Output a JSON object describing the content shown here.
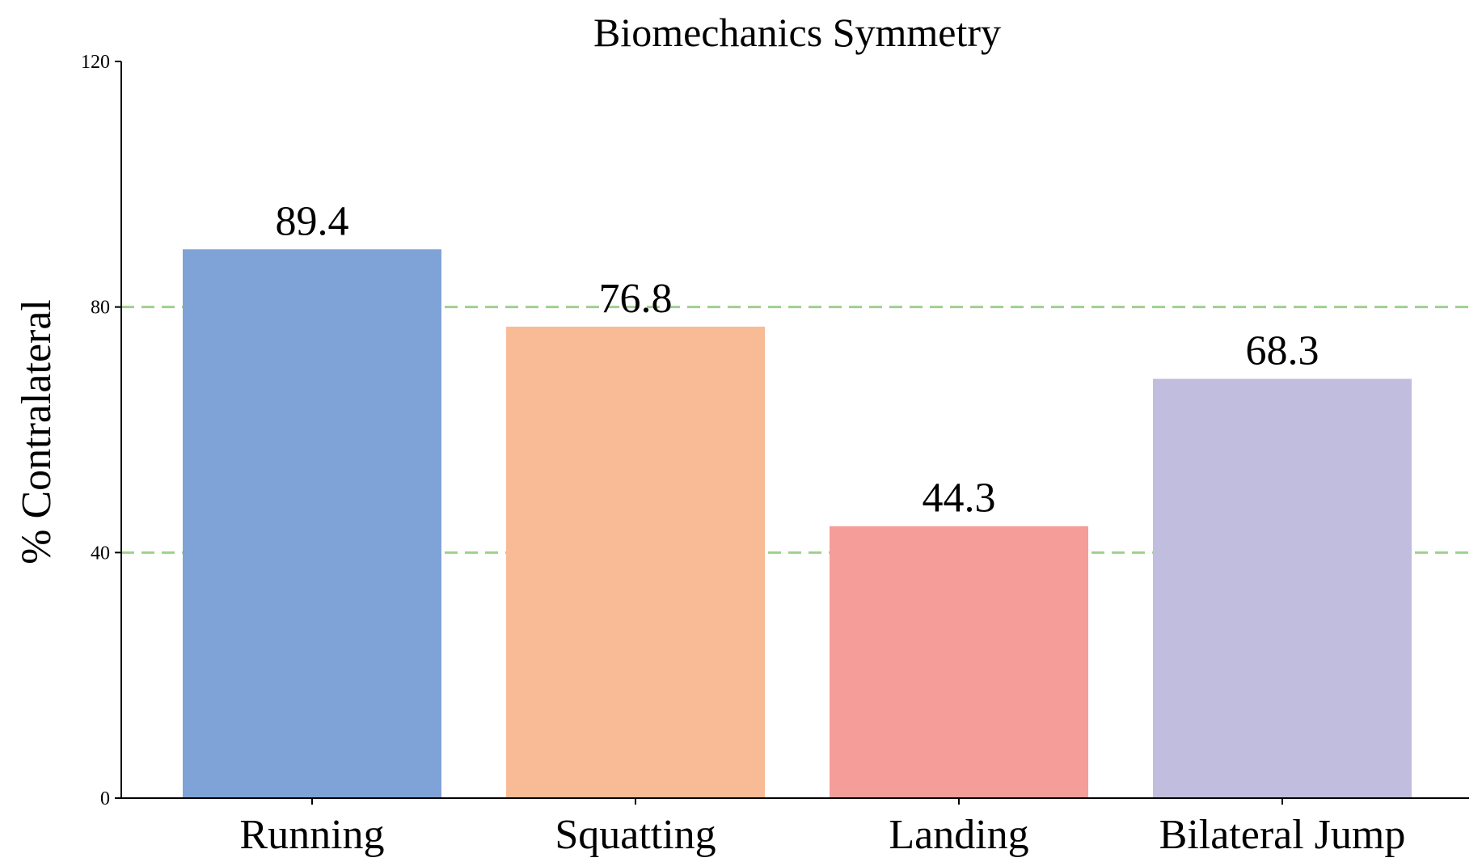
{
  "chart_data": {
    "type": "bar",
    "title": "Biomechanics Symmetry",
    "xlabel": "",
    "ylabel": "% Contralateral",
    "categories": [
      "Running",
      "Squatting",
      "Landing",
      "Bilateral Jump"
    ],
    "values": [
      89.4,
      76.8,
      44.3,
      68.3
    ],
    "value_labels": [
      "89.4",
      "76.8",
      "44.3",
      "68.3"
    ],
    "bar_colors": [
      "#7fa3d6",
      "#f8bb96",
      "#f59d99",
      "#c1bddf"
    ],
    "ylim": [
      0,
      120
    ],
    "yticks": [
      0,
      40,
      80,
      120
    ],
    "ytick_labels": [
      "0",
      "40",
      "80",
      "120"
    ],
    "reference_lines": [
      {
        "y": 80,
        "color": "#9fd08f",
        "style": "dashed"
      },
      {
        "y": 40,
        "color": "#9fd08f",
        "style": "dashed"
      }
    ],
    "grid": false,
    "legend": "none"
  }
}
